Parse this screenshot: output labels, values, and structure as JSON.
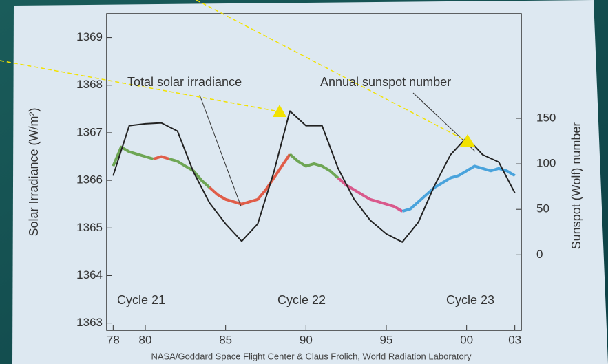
{
  "chart_data": {
    "type": "line",
    "y_label": "Solar Irradiance (W/m²)",
    "y2_label": "Sunspot (Wolf) number",
    "source": "NASA/Goddard Space Flight Center & Claus Frolich, World Radiation Laboratory",
    "annotations": [
      "Total solar irradiance",
      "Annual sunspot number",
      "Cycle 21",
      "Cycle 22",
      "Cycle 23"
    ],
    "xlim": [
      1977.6,
      2003.4
    ],
    "xticks": [
      {
        "value": 1978,
        "label": "78"
      },
      {
        "value": 1980,
        "label": "80"
      },
      {
        "value": 1985,
        "label": "85"
      },
      {
        "value": 1990,
        "label": "90"
      },
      {
        "value": 1995,
        "label": "95"
      },
      {
        "value": 2000,
        "label": "00"
      },
      {
        "value": 2003,
        "label": "03"
      }
    ],
    "ylim": [
      1362.85,
      1369.5
    ],
    "yticks": [
      1363,
      1364,
      1365,
      1366,
      1367,
      1368,
      1369
    ],
    "y2lim": [
      -83,
      265
    ],
    "y2ticks": [
      0,
      50,
      100,
      150
    ],
    "series": [
      {
        "color": "#5a9a3a",
        "x": [
          1978,
          1978.5,
          1979,
          1979.5,
          1980,
          1980.5
        ],
        "values": [
          1366.3,
          1366.7,
          1366.6,
          1366.55,
          1366.5,
          1366.45
        ]
      },
      {
        "color": "#e0442c",
        "x": [
          1980.5,
          1981,
          1981.5
        ],
        "values": [
          1366.45,
          1366.5,
          1366.45
        ]
      },
      {
        "color": "#5a9a3a",
        "x": [
          1981.5,
          1982,
          1982.5,
          1983,
          1983.5,
          1984
        ],
        "values": [
          1366.45,
          1366.4,
          1366.3,
          1366.2,
          1366.0,
          1365.85
        ]
      },
      {
        "color": "#e0442c",
        "x": [
          1984,
          1984.5,
          1985,
          1985.5,
          1986,
          1986.5,
          1987,
          1987.5,
          1988,
          1988.5,
          1989
        ],
        "values": [
          1365.85,
          1365.7,
          1365.6,
          1365.55,
          1365.5,
          1365.55,
          1365.6,
          1365.8,
          1366.05,
          1366.3,
          1366.55
        ]
      },
      {
        "color": "#5a9a3a",
        "x": [
          1989,
          1989.5,
          1990,
          1990.5,
          1991,
          1991.5,
          1992
        ],
        "values": [
          1366.55,
          1366.4,
          1366.3,
          1366.35,
          1366.3,
          1366.2,
          1366.05
        ]
      },
      {
        "color": "#d8407a",
        "x": [
          1992,
          1992.5,
          1993,
          1993.5,
          1994,
          1994.5,
          1995,
          1995.5,
          1996
        ],
        "values": [
          1366.05,
          1365.9,
          1365.8,
          1365.7,
          1365.6,
          1365.55,
          1365.5,
          1365.45,
          1365.35
        ]
      },
      {
        "color": "#2f96d8",
        "x": [
          1996,
          1996.5,
          1997,
          1997.5,
          1998,
          1998.5,
          1999,
          1999.5,
          2000,
          2000.5,
          2001,
          2001.5,
          2002,
          2002.5,
          2003
        ],
        "values": [
          1365.35,
          1365.4,
          1365.55,
          1365.7,
          1365.85,
          1365.95,
          1366.05,
          1366.1,
          1366.2,
          1366.3,
          1366.25,
          1366.2,
          1366.25,
          1366.2,
          1366.1
        ]
      },
      {
        "color": "#222222",
        "axis": "y2",
        "x": [
          1978,
          1979,
          1980,
          1981,
          1982,
          1983,
          1984,
          1985,
          1986,
          1987,
          1988,
          1989,
          1990,
          1991,
          1992,
          1993,
          1994,
          1995,
          1996,
          1997,
          1998,
          1999,
          2000,
          2001,
          2002,
          2003
        ],
        "values": [
          87,
          142,
          144,
          145,
          136,
          91,
          57,
          34,
          15,
          34,
          91,
          158,
          142,
          142,
          95,
          61,
          38,
          23,
          14,
          36,
          76,
          110,
          129,
          110,
          102,
          68
        ]
      }
    ]
  }
}
